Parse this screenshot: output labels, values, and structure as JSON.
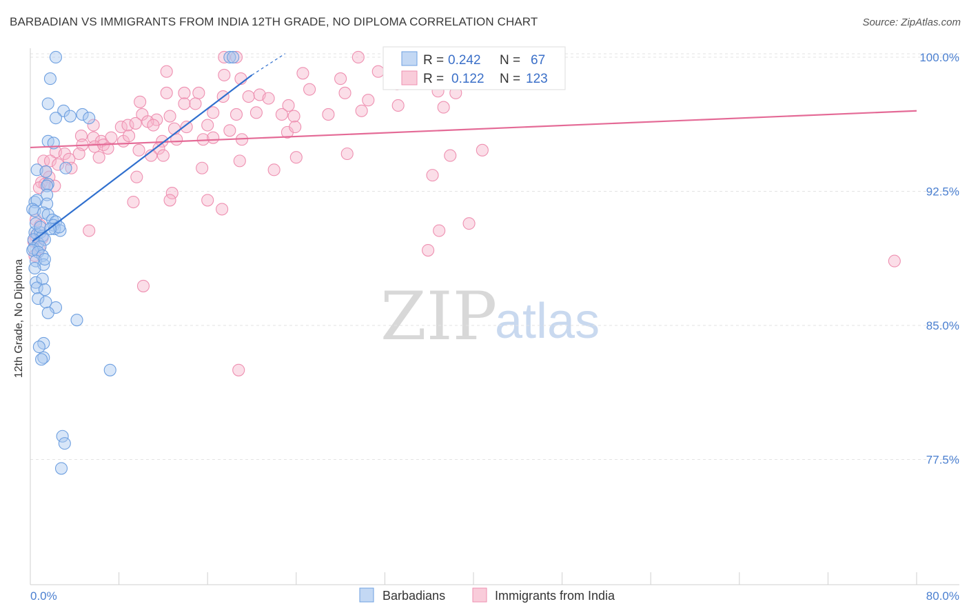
{
  "header": {
    "title": "BARBADIAN VS IMMIGRANTS FROM INDIA 12TH GRADE, NO DIPLOMA CORRELATION CHART",
    "source": "Source: ZipAtlas.com"
  },
  "watermark": {
    "zip": "ZIP",
    "atlas": "atlas"
  },
  "colors": {
    "blue_fill": "#a9c8f0",
    "blue_stroke": "#6d9fe0",
    "blue_line": "#2f6fce",
    "pink_fill": "#f6b6cb",
    "pink_stroke": "#ee8fb0",
    "pink_line": "#e46a96",
    "tick_text": "#4a7fd0",
    "grid": "#e3e3e3"
  },
  "legend": {
    "rows": [
      {
        "r_label": "R =",
        "r_value": "0.242",
        "n_label": "N =",
        "n_value": "67"
      },
      {
        "r_label": "R =",
        "r_value": "0.122",
        "n_label": "N =",
        "n_value": "123"
      }
    ]
  },
  "chart_data": {
    "type": "scatter",
    "title": "BARBADIAN VS IMMIGRANTS FROM INDIA 12TH GRADE, NO DIPLOMA CORRELATION CHART",
    "xlabel": "",
    "ylabel": "12th Grade, No Diploma",
    "xlim": [
      0,
      80
    ],
    "ylim": [
      70.5,
      100.5
    ],
    "x_tick_labels": {
      "left": "0.0%",
      "right": "80.0%"
    },
    "y_ticks": [
      {
        "value": 100.0,
        "label": "100.0%"
      },
      {
        "value": 92.5,
        "label": "92.5%"
      },
      {
        "value": 85.0,
        "label": "85.0%"
      },
      {
        "value": 77.5,
        "label": "77.5%"
      }
    ],
    "grid": true,
    "series": [
      {
        "name": "Barbadians",
        "R": 0.242,
        "N": 67,
        "trend": {
          "x": [
            0.2,
            20.0
          ],
          "y": [
            89.7,
            99.0
          ],
          "dashed_to_x": 23.0,
          "dashed_to_y": 100.2
        },
        "points": [
          [
            2.3,
            100.0
          ],
          [
            18.0,
            100.0
          ],
          [
            18.3,
            100.0
          ],
          [
            1.8,
            98.8
          ],
          [
            1.6,
            97.4
          ],
          [
            3.0,
            97.0
          ],
          [
            2.3,
            96.6
          ],
          [
            3.6,
            96.7
          ],
          [
            4.7,
            96.8
          ],
          [
            5.3,
            96.6
          ],
          [
            1.6,
            95.3
          ],
          [
            2.1,
            95.2
          ],
          [
            0.6,
            93.7
          ],
          [
            1.4,
            93.6
          ],
          [
            3.2,
            93.8
          ],
          [
            1.6,
            92.9
          ],
          [
            1.5,
            92.8
          ],
          [
            1.5,
            92.3
          ],
          [
            0.4,
            91.9
          ],
          [
            0.6,
            92.0
          ],
          [
            1.5,
            91.8
          ],
          [
            0.2,
            91.5
          ],
          [
            0.4,
            91.4
          ],
          [
            1.2,
            91.3
          ],
          [
            1.6,
            91.2
          ],
          [
            2.0,
            90.9
          ],
          [
            2.3,
            90.8
          ],
          [
            2.1,
            90.6
          ],
          [
            2.2,
            90.4
          ],
          [
            2.7,
            90.3
          ],
          [
            0.4,
            90.2
          ],
          [
            0.6,
            90.1
          ],
          [
            0.9,
            90.2
          ],
          [
            1.1,
            90.0
          ],
          [
            0.3,
            89.8
          ],
          [
            0.7,
            89.6
          ],
          [
            1.3,
            89.8
          ],
          [
            0.3,
            89.3
          ],
          [
            0.9,
            89.4
          ],
          [
            0.2,
            89.2
          ],
          [
            0.7,
            89.1
          ],
          [
            1.1,
            88.9
          ],
          [
            0.5,
            88.6
          ],
          [
            1.2,
            88.4
          ],
          [
            1.3,
            88.7
          ],
          [
            0.4,
            88.2
          ],
          [
            0.5,
            87.4
          ],
          [
            1.1,
            87.6
          ],
          [
            0.6,
            87.1
          ],
          [
            1.3,
            87.0
          ],
          [
            0.7,
            86.5
          ],
          [
            1.4,
            86.3
          ],
          [
            2.3,
            86.0
          ],
          [
            1.6,
            85.7
          ],
          [
            4.2,
            85.3
          ],
          [
            1.2,
            84.0
          ],
          [
            0.8,
            83.8
          ],
          [
            1.2,
            83.2
          ],
          [
            1.0,
            83.1
          ],
          [
            7.2,
            82.5
          ],
          [
            2.9,
            78.8
          ],
          [
            3.1,
            78.4
          ],
          [
            2.8,
            77.0
          ],
          [
            0.5,
            90.7
          ],
          [
            0.9,
            90.5
          ],
          [
            2.6,
            90.5
          ],
          [
            1.8,
            90.4
          ]
        ]
      },
      {
        "name": "Immigrants from India",
        "R": 0.122,
        "N": 123,
        "trend": {
          "x": [
            0.0,
            80.0
          ],
          "y": [
            94.95,
            97.0
          ]
        },
        "points": [
          [
            17.5,
            100.0
          ],
          [
            18.6,
            100.0
          ],
          [
            29.6,
            100.0
          ],
          [
            12.3,
            99.2
          ],
          [
            17.5,
            99.0
          ],
          [
            19.0,
            98.8
          ],
          [
            24.6,
            99.1
          ],
          [
            28.0,
            98.8
          ],
          [
            31.4,
            99.2
          ],
          [
            32.4,
            99.1
          ],
          [
            25.2,
            98.2
          ],
          [
            12.3,
            98.0
          ],
          [
            13.9,
            98.0
          ],
          [
            15.2,
            98.0
          ],
          [
            17.4,
            97.8
          ],
          [
            19.7,
            97.8
          ],
          [
            20.7,
            97.9
          ],
          [
            21.5,
            97.7
          ],
          [
            28.4,
            98.0
          ],
          [
            30.5,
            97.6
          ],
          [
            33.1,
            98.5
          ],
          [
            36.8,
            98.1
          ],
          [
            38.4,
            98.0
          ],
          [
            9.9,
            97.5
          ],
          [
            13.9,
            97.4
          ],
          [
            14.9,
            97.4
          ],
          [
            23.3,
            97.3
          ],
          [
            33.2,
            97.3
          ],
          [
            10.1,
            96.8
          ],
          [
            11.4,
            96.5
          ],
          [
            12.6,
            96.7
          ],
          [
            16.5,
            96.9
          ],
          [
            18.6,
            96.8
          ],
          [
            20.4,
            96.9
          ],
          [
            22.7,
            96.8
          ],
          [
            23.8,
            96.7
          ],
          [
            26.9,
            96.8
          ],
          [
            29.9,
            97.0
          ],
          [
            37.3,
            97.2
          ],
          [
            5.7,
            96.2
          ],
          [
            8.2,
            96.1
          ],
          [
            8.8,
            96.2
          ],
          [
            9.5,
            96.3
          ],
          [
            10.6,
            96.4
          ],
          [
            11.1,
            96.2
          ],
          [
            13.0,
            96.0
          ],
          [
            14.1,
            96.1
          ],
          [
            16.0,
            96.2
          ],
          [
            18.0,
            95.9
          ],
          [
            23.2,
            95.8
          ],
          [
            23.9,
            96.1
          ],
          [
            4.6,
            95.6
          ],
          [
            5.7,
            95.5
          ],
          [
            6.4,
            95.3
          ],
          [
            7.3,
            95.5
          ],
          [
            8.4,
            95.3
          ],
          [
            8.9,
            95.6
          ],
          [
            11.9,
            95.3
          ],
          [
            13.2,
            95.4
          ],
          [
            15.6,
            95.4
          ],
          [
            16.5,
            95.5
          ],
          [
            19.1,
            95.4
          ],
          [
            4.7,
            95.1
          ],
          [
            5.8,
            95.0
          ],
          [
            6.6,
            95.1
          ],
          [
            7.0,
            94.9
          ],
          [
            9.8,
            94.8
          ],
          [
            11.6,
            94.9
          ],
          [
            2.3,
            94.7
          ],
          [
            3.1,
            94.6
          ],
          [
            4.4,
            94.6
          ],
          [
            6.2,
            94.4
          ],
          [
            10.9,
            94.5
          ],
          [
            12.0,
            94.5
          ],
          [
            18.9,
            94.2
          ],
          [
            24.0,
            94.4
          ],
          [
            28.6,
            94.6
          ],
          [
            37.9,
            94.5
          ],
          [
            3.5,
            94.3
          ],
          [
            1.2,
            94.2
          ],
          [
            1.8,
            94.2
          ],
          [
            2.5,
            94.0
          ],
          [
            3.7,
            93.8
          ],
          [
            1.4,
            93.6
          ],
          [
            15.5,
            93.8
          ],
          [
            22.0,
            93.7
          ],
          [
            36.3,
            93.4
          ],
          [
            1.7,
            93.3
          ],
          [
            1.0,
            93.0
          ],
          [
            9.6,
            93.3
          ],
          [
            1.3,
            92.9
          ],
          [
            2.2,
            92.8
          ],
          [
            0.8,
            92.7
          ],
          [
            12.8,
            92.4
          ],
          [
            9.3,
            91.9
          ],
          [
            12.6,
            92.0
          ],
          [
            16.0,
            92.0
          ],
          [
            17.3,
            91.5
          ],
          [
            0.5,
            90.9
          ],
          [
            0.9,
            90.6
          ],
          [
            5.3,
            90.3
          ],
          [
            36.9,
            90.3
          ],
          [
            0.5,
            90.0
          ],
          [
            1.1,
            89.9
          ],
          [
            0.3,
            89.7
          ],
          [
            35.9,
            89.2
          ],
          [
            0.8,
            89.3
          ],
          [
            0.4,
            88.9
          ],
          [
            78.0,
            88.6
          ],
          [
            10.2,
            87.2
          ],
          [
            18.8,
            82.5
          ],
          [
            40.8,
            94.8
          ],
          [
            39.6,
            90.7
          ]
        ]
      }
    ]
  },
  "bottom_legend": {
    "items": [
      {
        "label": "Barbadians"
      },
      {
        "label": "Immigrants from India"
      }
    ]
  }
}
